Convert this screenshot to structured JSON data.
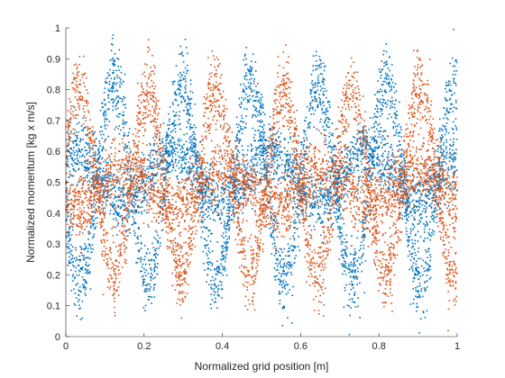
{
  "chart_data": {
    "type": "scatter",
    "title": "",
    "xlabel": "Normalized grid position [m]",
    "ylabel": "Normalized momentum [kg x m/s]",
    "xlim": [
      0,
      1
    ],
    "ylim": [
      0,
      1
    ],
    "x_ticks": [
      "0",
      "0.2",
      "0.4",
      "0.6",
      "0.8",
      "1"
    ],
    "y_ticks": [
      "0",
      "0.1",
      "0.2",
      "0.3",
      "0.4",
      "0.5",
      "0.6",
      "0.7",
      "0.8",
      "0.9",
      "1"
    ],
    "grid": false,
    "legend": "none",
    "marker": "dot",
    "series": [
      {
        "color": "#0072BD",
        "points_per_curve": 2600,
        "curves": [
          {
            "amplitude": 0.32,
            "frequency": 5.75,
            "phase": 3.4,
            "offset": 0.5,
            "jitter": 0.06
          },
          {
            "amplitude": 0.08,
            "frequency": 4.0,
            "phase": 1.0,
            "offset": 0.52,
            "jitter": 0.05
          }
        ]
      },
      {
        "color": "#D95319",
        "points_per_curve": 2600,
        "curves": [
          {
            "amplitude": 0.3,
            "frequency": 5.75,
            "phase": 0.3,
            "offset": 0.5,
            "jitter": 0.06
          },
          {
            "amplitude": 0.06,
            "frequency": 4.0,
            "phase": 4.0,
            "offset": 0.48,
            "jitter": 0.05
          }
        ]
      }
    ]
  }
}
